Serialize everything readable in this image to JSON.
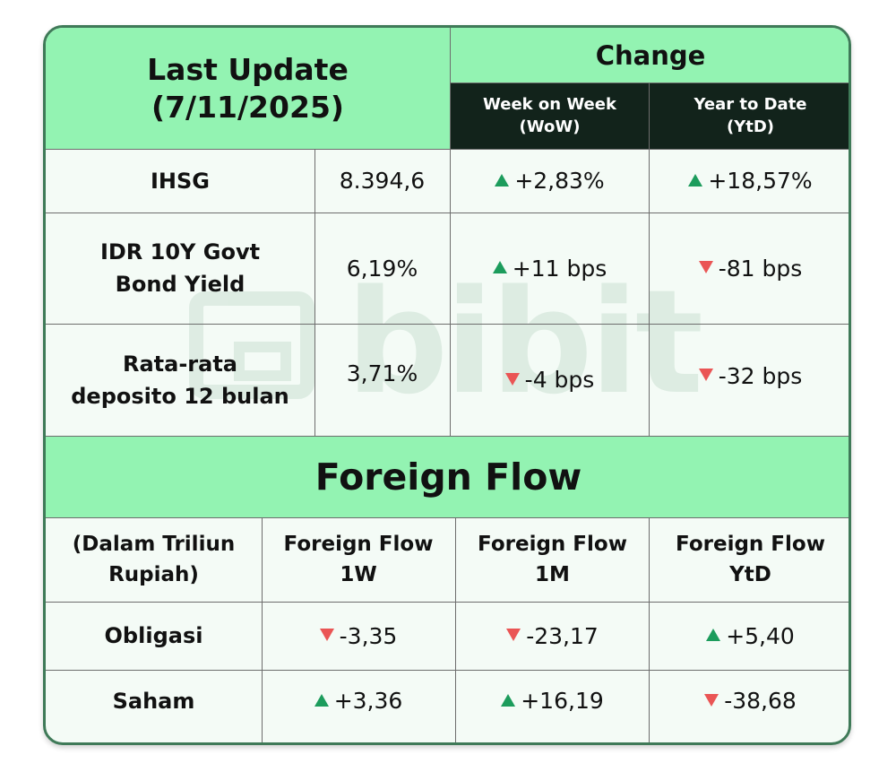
{
  "header": {
    "last_update_label": "Last Update",
    "last_update_date": "(7/11/2025)",
    "change_label": "Change",
    "wow_line1": "Week on Week",
    "wow_line2": "(WoW)",
    "ytd_line1": "Year to Date",
    "ytd_line2": "(YtD)"
  },
  "indicators": [
    {
      "label_line1": "IHSG",
      "label_line2": "",
      "value": "8.394,6",
      "wow": "+2,83%",
      "wow_dir": "up",
      "ytd": "+18,57%",
      "ytd_dir": "up"
    },
    {
      "label_line1": "IDR 10Y Govt",
      "label_line2": "Bond Yield",
      "value": "6,19%",
      "wow": "+11 bps",
      "wow_dir": "up",
      "ytd": "-81 bps",
      "ytd_dir": "down"
    },
    {
      "label_line1": "Rata-rata",
      "label_line2": "deposito 12 bulan",
      "value": "3,71%",
      "wow": "-4 bps",
      "wow_dir": "down",
      "ytd": "-32 bps",
      "ytd_dir": "down"
    }
  ],
  "foreign_flow": {
    "title": "Foreign Flow",
    "unit_line1": "(Dalam Triliun",
    "unit_line2": "Rupiah)",
    "columns": [
      {
        "line1": "Foreign Flow",
        "line2": "1W"
      },
      {
        "line1": "Foreign Flow",
        "line2": "1M"
      },
      {
        "line1": "Foreign Flow",
        "line2": "YtD"
      }
    ],
    "rows": [
      {
        "label": "Obligasi",
        "values": [
          "-3,35",
          "-23,17",
          "+5,40"
        ],
        "dirs": [
          "down",
          "down",
          "up"
        ]
      },
      {
        "label": "Saham",
        "values": [
          "+3,36",
          "+16,19",
          "-38,68"
        ],
        "dirs": [
          "up",
          "up",
          "down"
        ]
      }
    ]
  },
  "watermark": {
    "text": "bibit",
    "icon": "bibit-logo-icon"
  },
  "colors": {
    "header_green": "#93f3b2",
    "dark_header": "#12231b",
    "up": "#1c9c5c",
    "down": "#ea5555",
    "border": "#3f7a58"
  }
}
